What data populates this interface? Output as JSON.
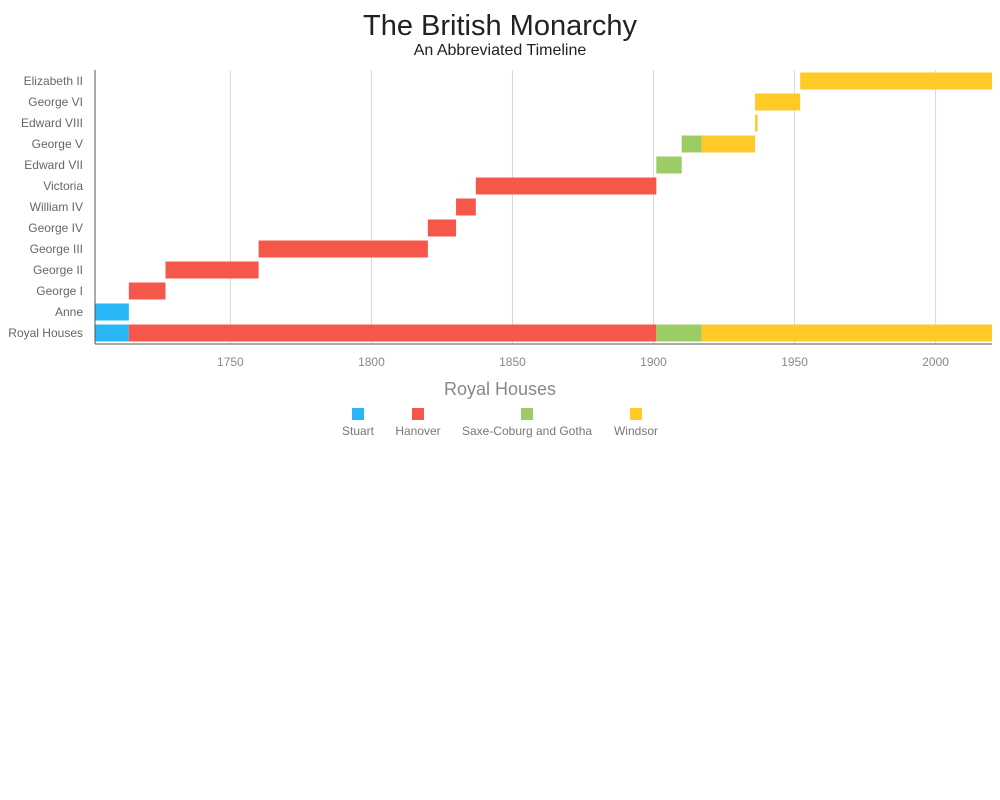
{
  "title": "The British Monarchy",
  "subtitle": "An Abbreviated Timeline",
  "chart_data": {
    "type": "timeline",
    "title": "The British Monarchy",
    "subtitle": "An Abbreviated Timeline",
    "xlim": [
      1702,
      2020
    ],
    "xticks": [
      1750,
      1800,
      1850,
      1900,
      1950,
      2000
    ],
    "grid": true,
    "rows": [
      "Elizabeth II",
      "George VI",
      "Edward VIII",
      "George V",
      "Edward VII",
      "Victoria",
      "William IV",
      "George IV",
      "George III",
      "George II",
      "George I",
      "Anne",
      "Royal Houses"
    ],
    "houses": {
      "Stuart": "#29b6f6",
      "Hanover": "#f5574a",
      "Saxe-Coburg and Gotha": "#9ccc65",
      "Windsor": "#ffca28"
    },
    "segments": [
      {
        "row": "Elizabeth II",
        "house": "Windsor",
        "start": 1952,
        "end": 2020
      },
      {
        "row": "George VI",
        "house": "Windsor",
        "start": 1936,
        "end": 1952
      },
      {
        "row": "Edward VIII",
        "house": "Windsor",
        "start": 1936,
        "end": 1936.9
      },
      {
        "row": "George V",
        "house": "Saxe-Coburg and Gotha",
        "start": 1910,
        "end": 1917
      },
      {
        "row": "George V",
        "house": "Windsor",
        "start": 1917,
        "end": 1936
      },
      {
        "row": "Edward VII",
        "house": "Saxe-Coburg and Gotha",
        "start": 1901,
        "end": 1910
      },
      {
        "row": "Victoria",
        "house": "Hanover",
        "start": 1837,
        "end": 1901
      },
      {
        "row": "William IV",
        "house": "Hanover",
        "start": 1830,
        "end": 1837
      },
      {
        "row": "George IV",
        "house": "Hanover",
        "start": 1820,
        "end": 1830
      },
      {
        "row": "George III",
        "house": "Hanover",
        "start": 1760,
        "end": 1820
      },
      {
        "row": "George II",
        "house": "Hanover",
        "start": 1727,
        "end": 1760
      },
      {
        "row": "George I",
        "house": "Hanover",
        "start": 1714,
        "end": 1727
      },
      {
        "row": "Anne",
        "house": "Stuart",
        "start": 1702,
        "end": 1714
      },
      {
        "row": "Royal Houses",
        "house": "Stuart",
        "start": 1702,
        "end": 1714
      },
      {
        "row": "Royal Houses",
        "house": "Hanover",
        "start": 1714,
        "end": 1901
      },
      {
        "row": "Royal Houses",
        "house": "Saxe-Coburg and Gotha",
        "start": 1901,
        "end": 1917
      },
      {
        "row": "Royal Houses",
        "house": "Windsor",
        "start": 1917,
        "end": 2020
      }
    ],
    "legend": {
      "title": "Royal Houses",
      "position": "bottom-center",
      "items": [
        "Stuart",
        "Hanover",
        "Saxe-Coburg and Gotha",
        "Windsor"
      ]
    }
  }
}
